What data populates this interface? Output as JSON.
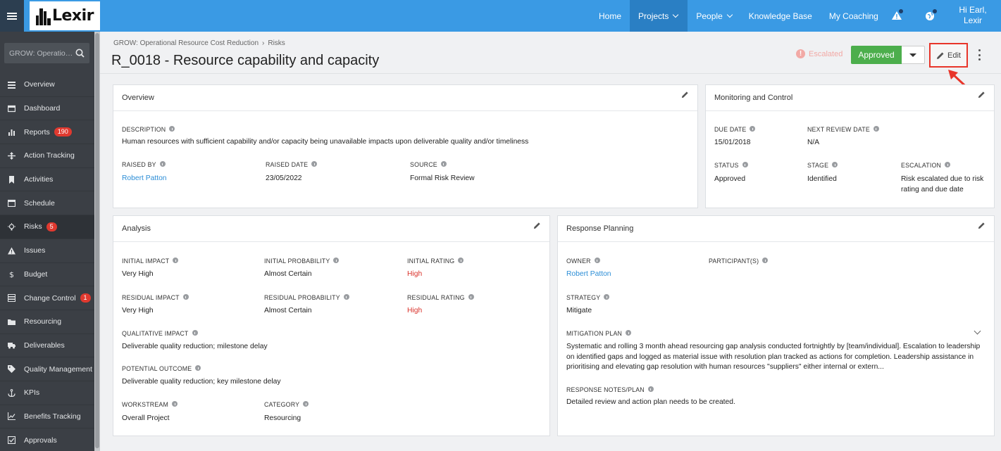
{
  "topbar": {
    "logo_text": "Lexir",
    "nav": [
      {
        "label": "Home",
        "dropdown": false,
        "active": false
      },
      {
        "label": "Projects",
        "dropdown": true,
        "active": true
      },
      {
        "label": "People",
        "dropdown": true,
        "active": false
      },
      {
        "label": "Knowledge Base",
        "dropdown": false,
        "active": false
      },
      {
        "label": "My Coaching",
        "dropdown": false,
        "active": false
      }
    ],
    "greeting_line1": "Hi Earl,",
    "greeting_line2": "Lexir",
    "accent_color": "#3a9ae4"
  },
  "sidebar": {
    "search_placeholder": "GROW: Operationa...",
    "items": [
      {
        "label": "Overview",
        "icon": "list-icon",
        "badge": ""
      },
      {
        "label": "Dashboard",
        "icon": "dashboard-icon",
        "badge": ""
      },
      {
        "label": "Reports",
        "icon": "bar-chart-icon",
        "badge": "190"
      },
      {
        "label": "Action Tracking",
        "icon": "arrows-icon",
        "badge": ""
      },
      {
        "label": "Activities",
        "icon": "bookmark-icon",
        "badge": ""
      },
      {
        "label": "Schedule",
        "icon": "calendar-icon",
        "badge": ""
      },
      {
        "label": "Risks",
        "icon": "lightbulb-icon",
        "badge": "5"
      },
      {
        "label": "Issues",
        "icon": "warning-icon",
        "badge": ""
      },
      {
        "label": "Budget",
        "icon": "dollar-icon",
        "badge": ""
      },
      {
        "label": "Change Control",
        "icon": "server-icon",
        "badge": "1"
      },
      {
        "label": "Resourcing",
        "icon": "folder-icon",
        "badge": ""
      },
      {
        "label": "Deliverables",
        "icon": "truck-icon",
        "badge": ""
      },
      {
        "label": "Quality Management",
        "icon": "tag-icon",
        "badge": ""
      },
      {
        "label": "KPIs",
        "icon": "anchor-icon",
        "badge": ""
      },
      {
        "label": "Benefits Tracking",
        "icon": "line-chart-icon",
        "badge": ""
      },
      {
        "label": "Approvals",
        "icon": "check-square-icon",
        "badge": ""
      }
    ]
  },
  "header": {
    "breadcrumb": [
      "GROW: Operational Resource Cost Reduction",
      "Risks"
    ],
    "breadcrumb_sep": "›",
    "title": "R_0018 - Resource capability and capacity",
    "escalated_label": "Escalated",
    "status_button": "Approved",
    "edit_button": "Edit"
  },
  "overview": {
    "title": "Overview",
    "description_label": "DESCRIPTION",
    "description": "Human resources with sufficient capability and/or capacity being unavailable impacts upon deliverable quality and/or timeliness",
    "raised_by_label": "RAISED BY",
    "raised_by": "Robert Patton",
    "raised_date_label": "RAISED DATE",
    "raised_date": "23/05/2022",
    "source_label": "SOURCE",
    "source": "Formal Risk Review"
  },
  "monitoring": {
    "title": "Monitoring and Control",
    "due_date_label": "DUE DATE",
    "due_date": "15/01/2018",
    "next_review_label": "NEXT REVIEW DATE",
    "next_review": "N/A",
    "status_label": "STATUS",
    "status": "Approved",
    "stage_label": "STAGE",
    "stage": "Identified",
    "escalation_label": "ESCALATION",
    "escalation": "Risk escalated due to risk rating and due date"
  },
  "analysis": {
    "title": "Analysis",
    "initial_impact_label": "INITIAL IMPACT",
    "initial_impact": "Very High",
    "initial_probability_label": "INITIAL PROBABILITY",
    "initial_probability": "Almost Certain",
    "initial_rating_label": "INITIAL RATING",
    "initial_rating": "High",
    "residual_impact_label": "RESIDUAL IMPACT",
    "residual_impact": "Very High",
    "residual_probability_label": "RESIDUAL PROBABILITY",
    "residual_probability": "Almost Certain",
    "residual_rating_label": "RESIDUAL RATING",
    "residual_rating": "High",
    "qualitative_impact_label": "QUALITATIVE IMPACT",
    "qualitative_impact": "Deliverable quality reduction; milestone delay",
    "potential_outcome_label": "POTENTIAL OUTCOME",
    "potential_outcome": "Deliverable quality reduction; key milestone delay",
    "workstream_label": "WORKSTREAM",
    "workstream": "Overall Project",
    "category_label": "CATEGORY",
    "category": "Resourcing",
    "rating_color": "#d9312a"
  },
  "response": {
    "title": "Response Planning",
    "owner_label": "OWNER",
    "owner": "Robert Patton",
    "participants_label": "PARTICIPANT(S)",
    "strategy_label": "STRATEGY",
    "strategy": "Mitigate",
    "mitigation_label": "MITIGATION PLAN",
    "mitigation": "Systematic and rolling 3 month ahead resourcing gap analysis conducted fortnightly by [team/individual]. Escalation to leadership on identified gaps and logged as material issue with resolution plan tracked as actions for completion. Leadership assistance in prioritising and elevating gap resolution with human resources \"suppliers\" either internal or extern...",
    "notes_label": "RESPONSE NOTES/PLAN",
    "notes": "Detailed review and action plan needs to be created."
  }
}
